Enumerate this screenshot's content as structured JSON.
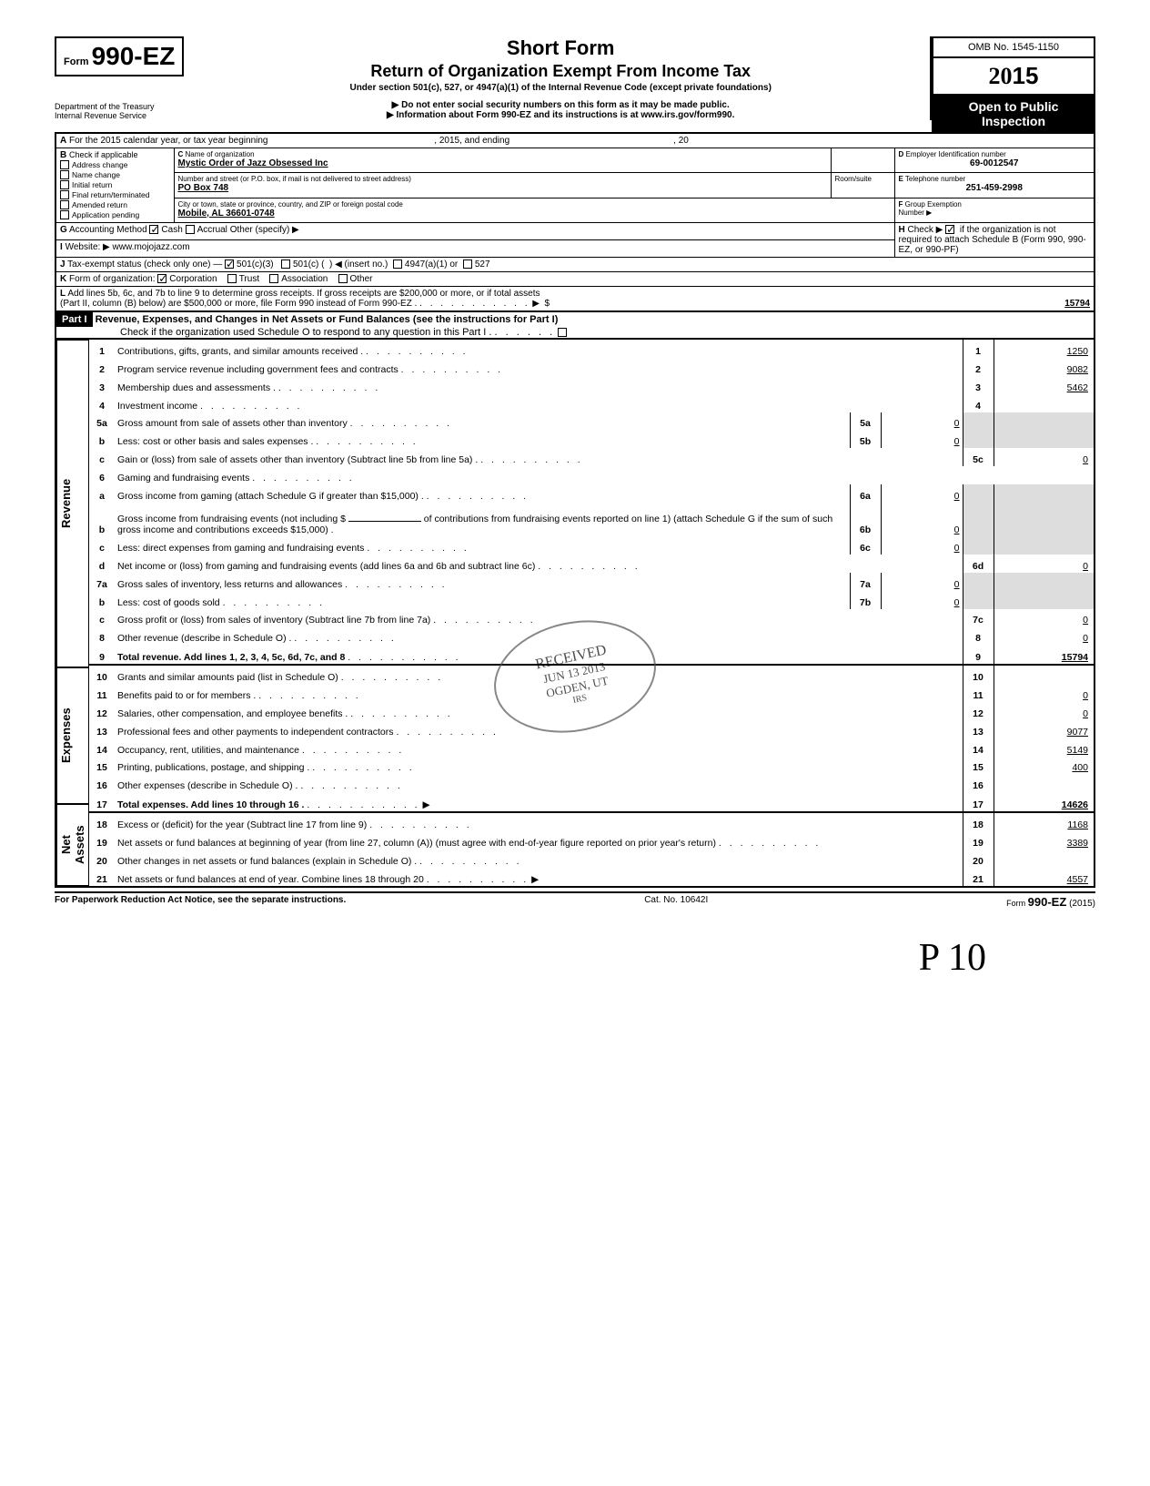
{
  "form_number_prefix": "Form",
  "form_number": "990-EZ",
  "title": "Short Form",
  "subtitle": "Return of Organization Exempt From Income Tax",
  "under": "Under section 501(c), 527, or 4947(a)(1) of the Internal Revenue Code (except private foundations)",
  "arrow1": "▶ Do not enter social security numbers on this form as it may be made public.",
  "arrow2": "▶ Information about Form 990-EZ and its instructions is at www.irs.gov/form990.",
  "omb": "OMB No. 1545-1150",
  "year": "2015",
  "public1": "Open to Public",
  "public2": "Inspection",
  "dept": "Department of the Treasury",
  "irs": "Internal Revenue Service",
  "A": "For the 2015 calendar year, or tax year beginning",
  "A_mid": ", 2015, and ending",
  "A_end": ", 20",
  "B": "Check if applicable",
  "B_items": [
    "Address change",
    "Name change",
    "Initial return",
    "Final return/terminated",
    "Amended return",
    "Application pending"
  ],
  "C": "Name of organization",
  "C_val": "Mystic Order of Jazz Obsessed Inc",
  "C2": "Number and street (or P.O. box, if mail is not delivered to street address)",
  "C2_val": "PO Box 748",
  "C2r": "Room/suite",
  "C3": "City or town, state or province, country, and ZIP or foreign postal code",
  "C3_val": "Mobile, AL 36601-0748",
  "D": "Employer Identification number",
  "D_val": "69-0012547",
  "E": "Telephone number",
  "E_val": "251-459-2998",
  "F": "Group Exemption",
  "F2": "Number ▶",
  "G": "Accounting Method",
  "G_cash": "Cash",
  "G_accr": "Accrual",
  "G_other": "Other (specify) ▶",
  "H": "Check ▶",
  "H2": "if the organization is not required to attach Schedule B (Form 990, 990-EZ, or 990-PF)",
  "I": "Website: ▶",
  "I_val": "www.mojojazz.com",
  "J": "Tax-exempt status (check only one) —",
  "J1": "501(c)(3)",
  "J2": "501(c) (",
  "J2b": ") ◀ (insert no.)",
  "J3": "4947(a)(1) or",
  "J4": "527",
  "K": "Form of organization:",
  "K1": "Corporation",
  "K2": "Trust",
  "K3": "Association",
  "K4": "Other",
  "L": "Add lines 5b, 6c, and 7b to line 9 to determine gross receipts. If gross receipts are $200,000 or more, or if total assets",
  "L2": "(Part II, column (B) below) are $500,000 or more, file Form 990 instead of Form 990-EZ .",
  "L_amt": "15794",
  "part1_hdr": "Part I",
  "part1_title": "Revenue, Expenses, and Changes in Net Assets or Fund Balances (see the instructions for Part I)",
  "part1_check": "Check if the organization used Schedule O to respond to any question in this Part I .",
  "side_rev": "Revenue",
  "side_exp": "Expenses",
  "side_net": "Net Assets",
  "lines": {
    "1": {
      "n": "1",
      "t": "Contributions, gifts, grants, and similar amounts received .",
      "box": "1",
      "amt": "1250"
    },
    "2": {
      "n": "2",
      "t": "Program service revenue including government fees and contracts",
      "box": "2",
      "amt": "9082"
    },
    "3": {
      "n": "3",
      "t": "Membership dues and assessments .",
      "box": "3",
      "amt": "5462"
    },
    "4": {
      "n": "4",
      "t": "Investment income",
      "box": "4",
      "amt": ""
    },
    "5a": {
      "n": "5a",
      "t": "Gross amount from sale of assets other than inventory",
      "ibox": "5a",
      "iamt": "0"
    },
    "5b": {
      "n": "b",
      "t": "Less: cost or other basis and sales expenses .",
      "ibox": "5b",
      "iamt": "0"
    },
    "5c": {
      "n": "c",
      "t": "Gain or (loss) from sale of assets other than inventory (Subtract line 5b from line 5a) .",
      "box": "5c",
      "amt": "0"
    },
    "6": {
      "n": "6",
      "t": "Gaming and fundraising events"
    },
    "6a": {
      "n": "a",
      "t": "Gross income from gaming (attach Schedule G if greater than $15,000) .",
      "ibox": "6a",
      "iamt": "0"
    },
    "6b": {
      "n": "b",
      "t": "Gross income from fundraising events (not including  $",
      "t2": "of contributions from fundraising events reported on line 1) (attach Schedule G if the sum of such gross income and contributions exceeds $15,000) .",
      "ibox": "6b",
      "iamt": "0"
    },
    "6c": {
      "n": "c",
      "t": "Less: direct expenses from gaming and fundraising events",
      "ibox": "6c",
      "iamt": "0"
    },
    "6d": {
      "n": "d",
      "t": "Net income or (loss) from gaming and fundraising events (add lines 6a and 6b and subtract line 6c)",
      "box": "6d",
      "amt": "0"
    },
    "7a": {
      "n": "7a",
      "t": "Gross sales of inventory, less returns and allowances",
      "ibox": "7a",
      "iamt": "0"
    },
    "7b": {
      "n": "b",
      "t": "Less: cost of goods sold",
      "ibox": "7b",
      "iamt": "0"
    },
    "7c": {
      "n": "c",
      "t": "Gross profit or (loss) from sales of inventory (Subtract line 7b from line 7a)",
      "box": "7c",
      "amt": "0"
    },
    "8": {
      "n": "8",
      "t": "Other revenue (describe in Schedule O) .",
      "box": "8",
      "amt": "0"
    },
    "9": {
      "n": "9",
      "t": "Total revenue. Add lines 1, 2, 3, 4, 5c, 6d, 7c, and 8",
      "box": "9",
      "amt": "15794",
      "bold": true
    },
    "10": {
      "n": "10",
      "t": "Grants and similar amounts paid (list in Schedule O)",
      "box": "10",
      "amt": ""
    },
    "11": {
      "n": "11",
      "t": "Benefits paid to or for members .",
      "box": "11",
      "amt": "0"
    },
    "12": {
      "n": "12",
      "t": "Salaries, other compensation, and employee benefits .",
      "box": "12",
      "amt": "0"
    },
    "13": {
      "n": "13",
      "t": "Professional fees and other payments to independent contractors",
      "box": "13",
      "amt": "9077"
    },
    "14": {
      "n": "14",
      "t": "Occupancy, rent, utilities, and maintenance",
      "box": "14",
      "amt": "5149"
    },
    "15": {
      "n": "15",
      "t": "Printing, publications, postage, and shipping .",
      "box": "15",
      "amt": "400"
    },
    "16": {
      "n": "16",
      "t": "Other expenses (describe in Schedule O) .",
      "box": "16",
      "amt": ""
    },
    "17": {
      "n": "17",
      "t": "Total expenses. Add lines 10 through 16 .",
      "box": "17",
      "amt": "14626",
      "bold": true
    },
    "18": {
      "n": "18",
      "t": "Excess or (deficit) for the year (Subtract line 17 from line 9)",
      "box": "18",
      "amt": "1168"
    },
    "19": {
      "n": "19",
      "t": "Net assets or fund balances at beginning of year (from line 27, column (A)) (must agree with end-of-year figure reported on prior year's return)",
      "box": "19",
      "amt": "3389"
    },
    "20": {
      "n": "20",
      "t": "Other changes in net assets or fund balances (explain in Schedule O) .",
      "box": "20",
      "amt": ""
    },
    "21": {
      "n": "21",
      "t": "Net assets or fund balances at end of year. Combine lines 18 through 20",
      "box": "21",
      "amt": "4557"
    }
  },
  "foot_left": "For Paperwork Reduction Act Notice, see the separate instructions.",
  "foot_mid": "Cat. No. 10642I",
  "foot_right": "Form 990-EZ (2015)",
  "stamp1": "RECEIVED",
  "stamp2": "JUN 13 2013",
  "stamp3": "OGDEN, UT",
  "stamp4": "IRS",
  "sig": "P   10"
}
